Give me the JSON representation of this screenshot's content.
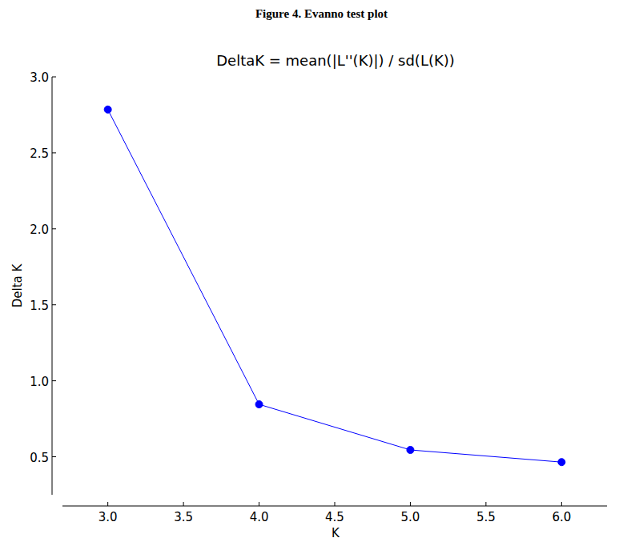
{
  "caption": "Figure 4. Evanno test plot",
  "chart_data": {
    "type": "line",
    "title": "DeltaK = mean(|L''(K)|) / sd(L(K))",
    "x_label": "K",
    "y_label": "Delta K",
    "x": [
      3,
      4,
      5,
      6
    ],
    "series": [
      {
        "name": "Delta K",
        "color": "#0000ff",
        "marker": "circle",
        "line_style": "solid",
        "values": [
          2.785,
          0.845,
          0.545,
          0.465
        ]
      }
    ],
    "xlim": [
      2.7,
      6.3
    ],
    "xticks": [
      {
        "value": 3,
        "label": "3.0"
      },
      3.5,
      {
        "value": 4,
        "label": "4.0"
      },
      4.5,
      {
        "value": 5,
        "label": "5.0"
      },
      5.5,
      {
        "value": 6,
        "label": "6.0"
      }
    ],
    "ylim": [
      0.25,
      3.0
    ],
    "yticks": [
      0.5,
      {
        "value": 1,
        "label": "1.0"
      },
      1.5,
      {
        "value": 2,
        "label": "2.0"
      },
      2.5,
      {
        "value": 3,
        "label": "3.0"
      }
    ],
    "grid": false
  }
}
